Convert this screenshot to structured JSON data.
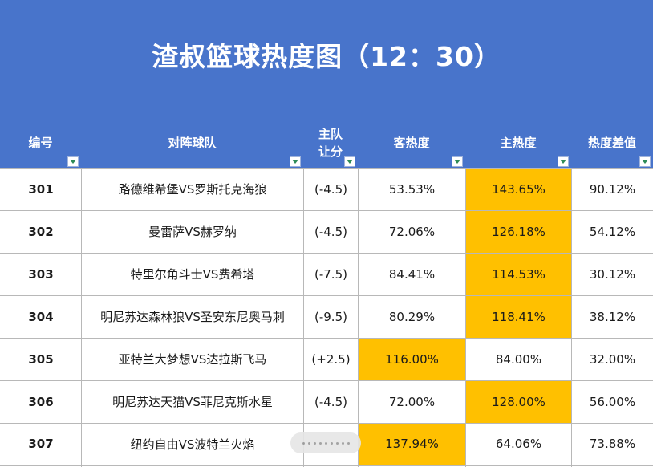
{
  "title": "渣叔篮球热度图（12：30）",
  "columns": [
    {
      "key": "id",
      "label": "编号"
    },
    {
      "key": "match",
      "label": "对阵球队"
    },
    {
      "key": "handicap",
      "label": "主队\n让分"
    },
    {
      "key": "away_heat",
      "label": "客热度"
    },
    {
      "key": "home_heat",
      "label": "主热度"
    },
    {
      "key": "diff",
      "label": "热度差值"
    }
  ],
  "colors": {
    "header_bg": "#4874cb",
    "highlight": "#ffc000"
  },
  "rows": [
    {
      "id": "301",
      "match": "路德维希堡VS罗斯托克海狼",
      "handicap": "(-4.5)",
      "away_heat": "53.53%",
      "home_heat": "143.65%",
      "diff": "90.12%",
      "highlight": "home"
    },
    {
      "id": "302",
      "match": "曼雷萨VS赫罗纳",
      "handicap": "(-4.5)",
      "away_heat": "72.06%",
      "home_heat": "126.18%",
      "diff": "54.12%",
      "highlight": "home"
    },
    {
      "id": "303",
      "match": "特里尔角斗士VS费希塔",
      "handicap": "(-7.5)",
      "away_heat": "84.41%",
      "home_heat": "114.53%",
      "diff": "30.12%",
      "highlight": "home"
    },
    {
      "id": "304",
      "match": "明尼苏达森林狼VS圣安东尼奥马刺",
      "handicap": "(-9.5)",
      "away_heat": "80.29%",
      "home_heat": "118.41%",
      "diff": "38.12%",
      "highlight": "home"
    },
    {
      "id": "305",
      "match": "亚特兰大梦想VS达拉斯飞马",
      "handicap": "(+2.5)",
      "away_heat": "116.00%",
      "home_heat": "84.00%",
      "diff": "32.00%",
      "highlight": "away"
    },
    {
      "id": "306",
      "match": "明尼苏达天猫VS菲尼克斯水星",
      "handicap": "(-4.5)",
      "away_heat": "72.00%",
      "home_heat": "128.00%",
      "diff": "56.00%",
      "highlight": "home"
    },
    {
      "id": "307",
      "match": "纽约自由VS波特兰火焰",
      "handicap": "",
      "away_heat": "137.94%",
      "home_heat": "64.06%",
      "diff": "73.88%",
      "highlight": "away"
    }
  ]
}
